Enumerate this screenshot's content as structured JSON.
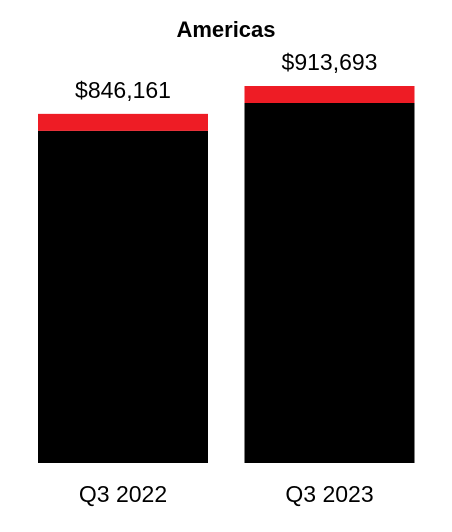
{
  "chart_data": {
    "type": "stacked-bar",
    "title": "Americas",
    "categories": [
      "Q3 2022",
      "Q3 2023"
    ],
    "series": [
      {
        "color": "#000000",
        "values": [
          804961,
          872493
        ]
      },
      {
        "color": "#ee1c25",
        "values": [
          41200,
          41200
        ]
      }
    ],
    "totals": [
      846161,
      913693
    ],
    "total_labels": [
      "$846,161",
      "$913,693"
    ]
  }
}
